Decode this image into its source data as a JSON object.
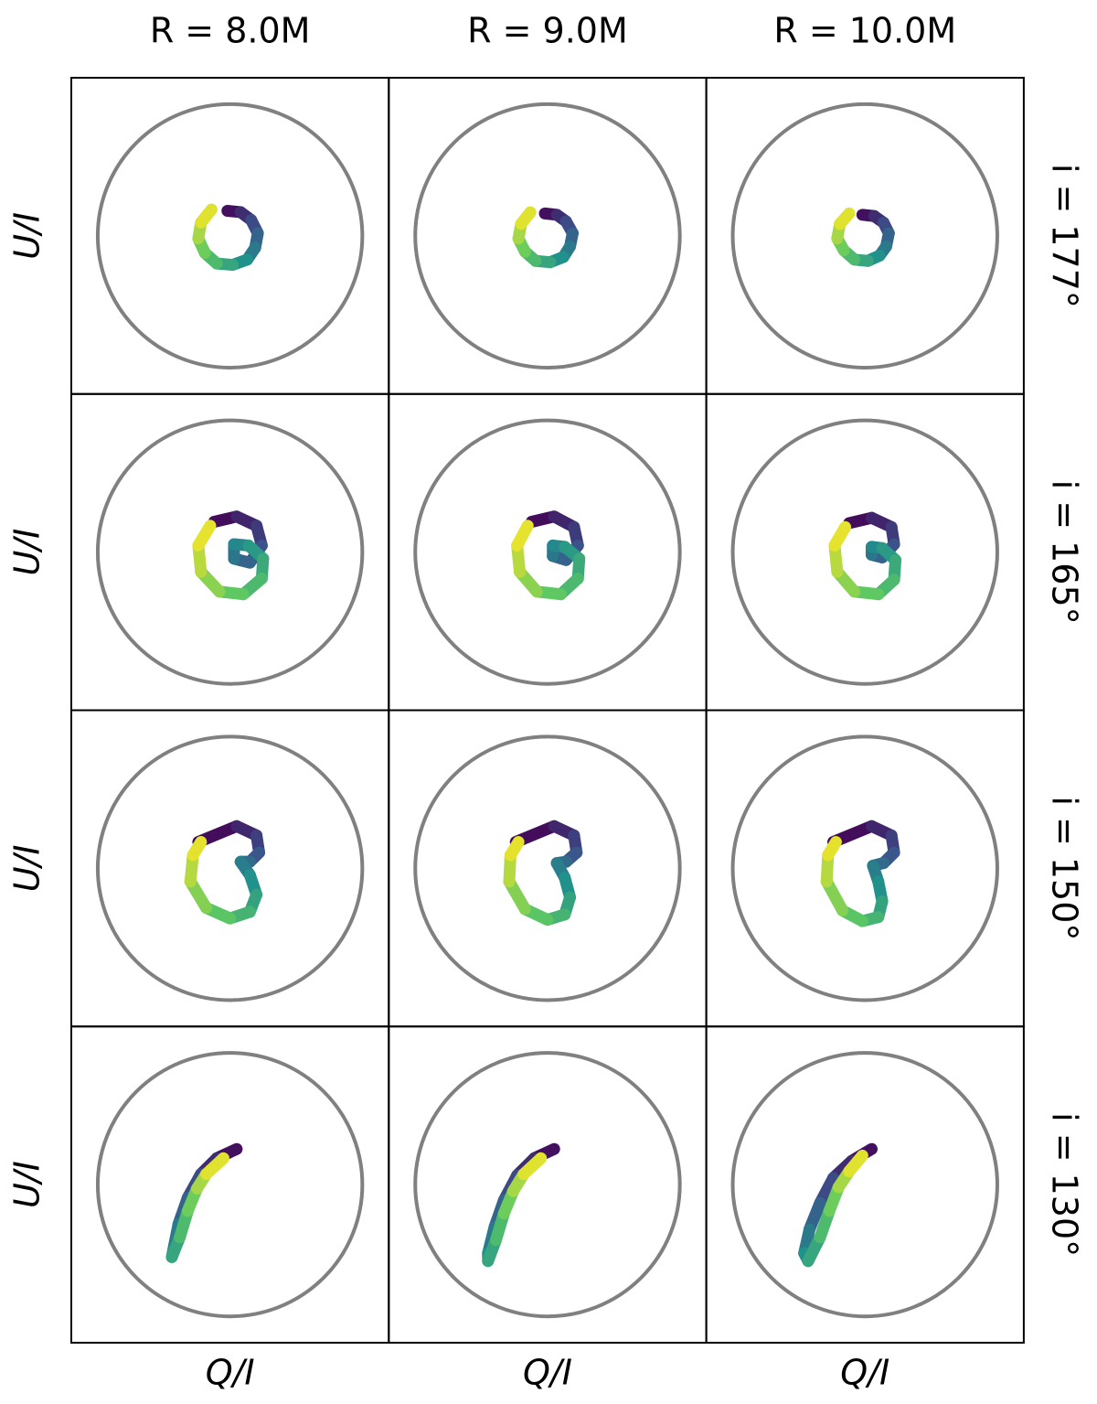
{
  "column_titles": [
    "R = 8.0M",
    "R = 9.0M",
    "R = 10.0M"
  ],
  "row_labels": [
    "i = 177°",
    "i = 165°",
    "i = 150°",
    "i = 130°"
  ],
  "xlabel": "Q/I",
  "ylabel": "U/I",
  "colormap": "viridis",
  "circle_radius": 1,
  "circle_color": "#808080",
  "chart_data": [
    {
      "type": "line",
      "xlim": [
        -1.2,
        1.2
      ],
      "ylim": [
        -1.2,
        1.2
      ],
      "x": [
        -0.02,
        0.08,
        0.16,
        0.21,
        0.19,
        0.13,
        0.02,
        -0.1,
        -0.19,
        -0.24,
        -0.22,
        -0.14
      ],
      "y": [
        0.19,
        0.18,
        0.12,
        0.02,
        -0.09,
        -0.18,
        -0.22,
        -0.21,
        -0.13,
        -0.02,
        0.1,
        0.2
      ]
    },
    {
      "type": "line",
      "xlim": [
        -1.2,
        1.2
      ],
      "ylim": [
        -1.2,
        1.2
      ],
      "x": [
        -0.02,
        0.07,
        0.14,
        0.19,
        0.17,
        0.12,
        0.02,
        -0.09,
        -0.17,
        -0.22,
        -0.2,
        -0.13
      ],
      "y": [
        0.17,
        0.16,
        0.11,
        0.02,
        -0.08,
        -0.16,
        -0.2,
        -0.19,
        -0.12,
        -0.02,
        0.09,
        0.18
      ]
    },
    {
      "type": "line",
      "xlim": [
        -1.2,
        1.2
      ],
      "ylim": [
        -1.2,
        1.2
      ],
      "x": [
        -0.02,
        0.07,
        0.14,
        0.18,
        0.16,
        0.11,
        0.02,
        -0.08,
        -0.16,
        -0.21,
        -0.19,
        -0.12
      ],
      "y": [
        0.16,
        0.15,
        0.1,
        0.02,
        -0.08,
        -0.15,
        -0.19,
        -0.18,
        -0.11,
        -0.02,
        0.09,
        0.17
      ]
    },
    {
      "type": "line",
      "xlim": [
        -1.2,
        1.2
      ],
      "ylim": [
        -1.2,
        1.2
      ],
      "x": [
        -0.12,
        0.05,
        0.2,
        0.24,
        0.15,
        0.03,
        0.03,
        0.14,
        0.25,
        0.24,
        0.1,
        -0.08,
        -0.22,
        -0.24,
        -0.15
      ],
      "y": [
        0.23,
        0.27,
        0.2,
        0.05,
        -0.08,
        -0.05,
        0.06,
        0.05,
        -0.05,
        -0.2,
        -0.32,
        -0.3,
        -0.15,
        0.05,
        0.2
      ]
    },
    {
      "type": "line",
      "xlim": [
        -1.2,
        1.2
      ],
      "ylim": [
        -1.2,
        1.2
      ],
      "x": [
        -0.12,
        0.05,
        0.2,
        0.23,
        0.14,
        0.04,
        0.04,
        0.13,
        0.24,
        0.23,
        0.1,
        -0.08,
        -0.21,
        -0.23,
        -0.15
      ],
      "y": [
        0.23,
        0.27,
        0.19,
        0.05,
        -0.06,
        -0.03,
        0.05,
        0.04,
        -0.05,
        -0.2,
        -0.32,
        -0.3,
        -0.15,
        0.05,
        0.2
      ]
    },
    {
      "type": "line",
      "xlim": [
        -1.2,
        1.2
      ],
      "ylim": [
        -1.2,
        1.2
      ],
      "x": [
        -0.12,
        0.05,
        0.2,
        0.22,
        0.13,
        0.05,
        0.05,
        0.13,
        0.23,
        0.22,
        0.1,
        -0.08,
        -0.21,
        -0.23,
        -0.15
      ],
      "y": [
        0.22,
        0.26,
        0.19,
        0.06,
        -0.04,
        -0.02,
        0.04,
        0.03,
        -0.06,
        -0.21,
        -0.32,
        -0.3,
        -0.15,
        0.05,
        0.19
      ]
    },
    {
      "type": "line",
      "xlim": [
        -1.2,
        1.2
      ],
      "ylim": [
        -1.2,
        1.2
      ],
      "x": [
        -0.24,
        0.05,
        0.2,
        0.22,
        0.15,
        0.08,
        0.15,
        0.2,
        0.15,
        0.0,
        -0.18,
        -0.3,
        -0.28,
        -0.22
      ],
      "y": [
        0.2,
        0.32,
        0.25,
        0.12,
        0.05,
        0.05,
        -0.05,
        -0.2,
        -0.33,
        -0.38,
        -0.3,
        -0.1,
        0.1,
        0.2
      ]
    },
    {
      "type": "line",
      "xlim": [
        -1.2,
        1.2
      ],
      "ylim": [
        -1.2,
        1.2
      ],
      "x": [
        -0.24,
        0.05,
        0.2,
        0.22,
        0.14,
        0.07,
        0.13,
        0.17,
        0.13,
        0.0,
        -0.17,
        -0.29,
        -0.28,
        -0.22
      ],
      "y": [
        0.2,
        0.32,
        0.25,
        0.12,
        0.05,
        0.04,
        -0.07,
        -0.22,
        -0.35,
        -0.39,
        -0.31,
        -0.1,
        0.1,
        0.2
      ]
    },
    {
      "type": "line",
      "xlim": [
        -1.2,
        1.2
      ],
      "ylim": [
        -1.2,
        1.2
      ],
      "x": [
        -0.24,
        0.05,
        0.2,
        0.22,
        0.14,
        0.06,
        0.1,
        0.13,
        0.1,
        -0.02,
        -0.17,
        -0.29,
        -0.28,
        -0.22
      ],
      "y": [
        0.2,
        0.32,
        0.25,
        0.12,
        0.04,
        0.02,
        -0.1,
        -0.25,
        -0.37,
        -0.4,
        -0.32,
        -0.1,
        0.1,
        0.2
      ]
    },
    {
      "type": "line",
      "xlim": [
        -1.2,
        1.2
      ],
      "ylim": [
        -1.2,
        1.2
      ],
      "x": [
        0.05,
        -0.1,
        -0.22,
        -0.32,
        -0.39,
        -0.43,
        -0.44,
        -0.38,
        -0.32,
        -0.25,
        -0.18,
        -0.05
      ],
      "y": [
        0.27,
        0.2,
        0.08,
        -0.1,
        -0.3,
        -0.5,
        -0.55,
        -0.4,
        -0.2,
        -0.03,
        0.08,
        0.2
      ]
    },
    {
      "type": "line",
      "xlim": [
        -1.2,
        1.2
      ],
      "ylim": [
        -1.2,
        1.2
      ],
      "x": [
        0.05,
        -0.1,
        -0.23,
        -0.33,
        -0.4,
        -0.45,
        -0.45,
        -0.39,
        -0.33,
        -0.26,
        -0.18,
        -0.05
      ],
      "y": [
        0.27,
        0.2,
        0.07,
        -0.12,
        -0.32,
        -0.52,
        -0.58,
        -0.42,
        -0.22,
        -0.05,
        0.08,
        0.2
      ]
    },
    {
      "type": "line",
      "xlim": [
        -1.2,
        1.2
      ],
      "ylim": [
        -1.2,
        1.2
      ],
      "x": [
        0.05,
        -0.1,
        -0.24,
        -0.34,
        -0.42,
        -0.46,
        -0.43,
        -0.34,
        -0.27,
        -0.2,
        -0.12,
        -0.02
      ],
      "y": [
        0.27,
        0.18,
        0.05,
        -0.14,
        -0.34,
        -0.52,
        -0.58,
        -0.4,
        -0.2,
        -0.02,
        0.1,
        0.22
      ]
    }
  ]
}
